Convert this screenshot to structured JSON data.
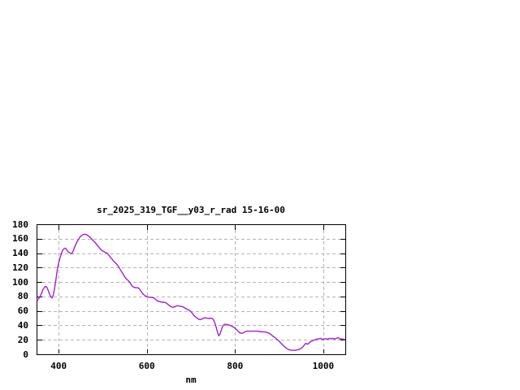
{
  "chart_data": {
    "type": "line",
    "title": "sr_2025_319_TGF__y03_r_rad 15-16-00",
    "xlabel": "nm",
    "ylabel": "",
    "xlim": [
      350,
      1050
    ],
    "ylim": [
      0,
      180
    ],
    "xticks": [
      400,
      600,
      800,
      1000
    ],
    "yticks": [
      0,
      20,
      40,
      60,
      80,
      100,
      120,
      140,
      160,
      180
    ],
    "grid": true,
    "legend_position": "none",
    "line_color": "#a21fd0",
    "grid_color": "#b4b4b4",
    "frame_color": "#000000",
    "background_color": "#ffffff",
    "points": [
      [
        350,
        76
      ],
      [
        352,
        75
      ],
      [
        355,
        77
      ],
      [
        358,
        80
      ],
      [
        361,
        84
      ],
      [
        364,
        89
      ],
      [
        367,
        92
      ],
      [
        370,
        94
      ],
      [
        373,
        93
      ],
      [
        376,
        89
      ],
      [
        379,
        84
      ],
      [
        382,
        80
      ],
      [
        385,
        78
      ],
      [
        388,
        82
      ],
      [
        391,
        92
      ],
      [
        394,
        104
      ],
      [
        397,
        117
      ],
      [
        400,
        126
      ],
      [
        403,
        133
      ],
      [
        406,
        139
      ],
      [
        409,
        144
      ],
      [
        412,
        146
      ],
      [
        415,
        147
      ],
      [
        418,
        145
      ],
      [
        421,
        142
      ],
      [
        424,
        141
      ],
      [
        427,
        140
      ],
      [
        430,
        139
      ],
      [
        433,
        143
      ],
      [
        436,
        148
      ],
      [
        439,
        152
      ],
      [
        442,
        156
      ],
      [
        445,
        159
      ],
      [
        448,
        162
      ],
      [
        451,
        164
      ],
      [
        454,
        165
      ],
      [
        457,
        166
      ],
      [
        461,
        166
      ],
      [
        465,
        165
      ],
      [
        469,
        163
      ],
      [
        473,
        161
      ],
      [
        477,
        158
      ],
      [
        481,
        156
      ],
      [
        485,
        153
      ],
      [
        489,
        150
      ],
      [
        493,
        147
      ],
      [
        497,
        144
      ],
      [
        500,
        143
      ],
      [
        503,
        142
      ],
      [
        506,
        141
      ],
      [
        510,
        140
      ],
      [
        514,
        137
      ],
      [
        518,
        134
      ],
      [
        522,
        131
      ],
      [
        526,
        128
      ],
      [
        530,
        126
      ],
      [
        534,
        123
      ],
      [
        538,
        119
      ],
      [
        542,
        115
      ],
      [
        546,
        111
      ],
      [
        550,
        107
      ],
      [
        554,
        104
      ],
      [
        558,
        102
      ],
      [
        562,
        99
      ],
      [
        566,
        95
      ],
      [
        570,
        93
      ],
      [
        575,
        92
      ],
      [
        580,
        92
      ],
      [
        584,
        90
      ],
      [
        588,
        86
      ],
      [
        592,
        83
      ],
      [
        596,
        81
      ],
      [
        600,
        80
      ],
      [
        604,
        79
      ],
      [
        608,
        79
      ],
      [
        612,
        78.5
      ],
      [
        616,
        78
      ],
      [
        620,
        76
      ],
      [
        624,
        74
      ],
      [
        628,
        73
      ],
      [
        632,
        72.5
      ],
      [
        636,
        72
      ],
      [
        640,
        72
      ],
      [
        644,
        71
      ],
      [
        648,
        69
      ],
      [
        652,
        67
      ],
      [
        656,
        65.5
      ],
      [
        660,
        65
      ],
      [
        664,
        66
      ],
      [
        668,
        67
      ],
      [
        672,
        67
      ],
      [
        676,
        66.5
      ],
      [
        680,
        66
      ],
      [
        684,
        65
      ],
      [
        688,
        63.5
      ],
      [
        692,
        62
      ],
      [
        696,
        61
      ],
      [
        700,
        59
      ],
      [
        704,
        56
      ],
      [
        708,
        53
      ],
      [
        712,
        51
      ],
      [
        716,
        49
      ],
      [
        720,
        48
      ],
      [
        724,
        48.5
      ],
      [
        728,
        50
      ],
      [
        732,
        50.5
      ],
      [
        736,
        50
      ],
      [
        740,
        49.5
      ],
      [
        744,
        50
      ],
      [
        748,
        49.5
      ],
      [
        751,
        48
      ],
      [
        754,
        44
      ],
      [
        757,
        38
      ],
      [
        760,
        31
      ],
      [
        763,
        25.5
      ],
      [
        766,
        28
      ],
      [
        769,
        34
      ],
      [
        772,
        39
      ],
      [
        775,
        41
      ],
      [
        778,
        41.5
      ],
      [
        782,
        41
      ],
      [
        786,
        40.5
      ],
      [
        790,
        39.5
      ],
      [
        794,
        38.5
      ],
      [
        798,
        37
      ],
      [
        802,
        35
      ],
      [
        806,
        32.5
      ],
      [
        810,
        30
      ],
      [
        814,
        29
      ],
      [
        818,
        29.5
      ],
      [
        822,
        31
      ],
      [
        826,
        32
      ],
      [
        831,
        32
      ],
      [
        836,
        32
      ],
      [
        841,
        32
      ],
      [
        846,
        32
      ],
      [
        851,
        32
      ],
      [
        856,
        31.5
      ],
      [
        861,
        31
      ],
      [
        866,
        31
      ],
      [
        871,
        30.5
      ],
      [
        876,
        29.5
      ],
      [
        880,
        28
      ],
      [
        884,
        26
      ],
      [
        888,
        24
      ],
      [
        892,
        22.5
      ],
      [
        896,
        20
      ],
      [
        900,
        18
      ],
      [
        904,
        15.5
      ],
      [
        908,
        13
      ],
      [
        912,
        10.5
      ],
      [
        916,
        8.5
      ],
      [
        920,
        7
      ],
      [
        924,
        6
      ],
      [
        928,
        5.5
      ],
      [
        932,
        5.5
      ],
      [
        936,
        5.5
      ],
      [
        940,
        6
      ],
      [
        944,
        6.5
      ],
      [
        948,
        7.5
      ],
      [
        952,
        9
      ],
      [
        956,
        12
      ],
      [
        960,
        15
      ],
      [
        965,
        14
      ],
      [
        970,
        17
      ],
      [
        974,
        18
      ],
      [
        978,
        19.5
      ],
      [
        982,
        20
      ],
      [
        986,
        21
      ],
      [
        990,
        21.5
      ],
      [
        994,
        22
      ],
      [
        998,
        20.5
      ],
      [
        1002,
        21
      ],
      [
        1006,
        21.5
      ],
      [
        1010,
        21
      ],
      [
        1014,
        22
      ],
      [
        1018,
        21.5
      ],
      [
        1022,
        22
      ],
      [
        1026,
        21
      ],
      [
        1030,
        22
      ],
      [
        1034,
        23
      ],
      [
        1038,
        21
      ],
      [
        1042,
        21.5
      ],
      [
        1046,
        20.5
      ],
      [
        1050,
        20.5
      ]
    ]
  }
}
